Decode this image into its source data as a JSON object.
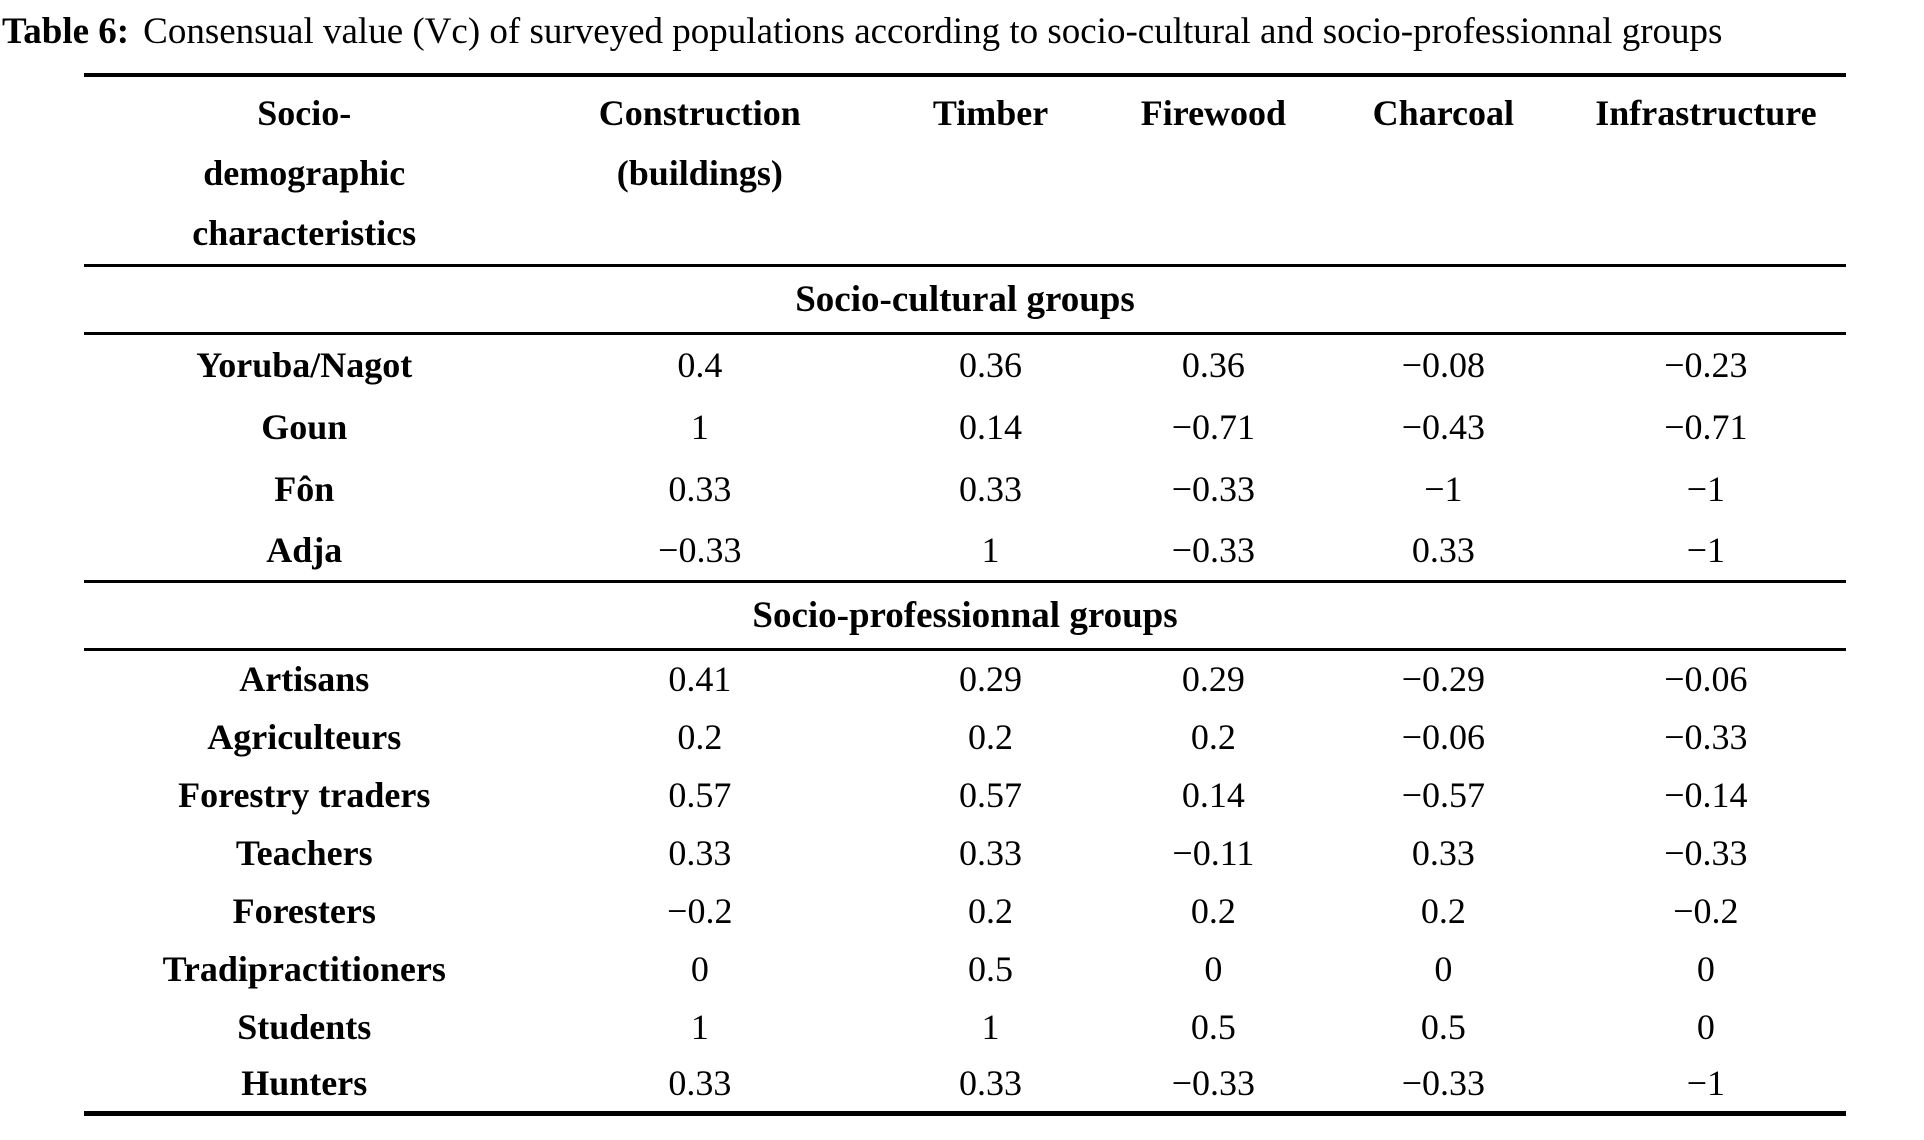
{
  "caption": {
    "label": "Table 6:",
    "text": "Consensual value (Vc) of surveyed populations according to socio-cultural and socio-professionnal groups"
  },
  "table": {
    "headers": [
      "Socio-\ndemographic\ncharacteristics",
      "Construction\n(buildings)",
      "Timber",
      "Firewood",
      "Charcoal",
      "Infrastructure"
    ],
    "sections": [
      {
        "section_label": "Socio-cultural groups",
        "rows": [
          {
            "label": "Yoruba/Nagot",
            "values": [
              "0.4",
              "0.36",
              "0.36",
              "−0.08",
              "−0.23"
            ]
          },
          {
            "label": "Goun",
            "values": [
              "1",
              "0.14",
              "−0.71",
              "−0.43",
              "−0.71"
            ]
          },
          {
            "label": "Fôn",
            "values": [
              "0.33",
              "0.33",
              "−0.33",
              "−1",
              "−1"
            ]
          },
          {
            "label": "Adja",
            "values": [
              "−0.33",
              "1",
              "−0.33",
              "0.33",
              "−1"
            ]
          }
        ]
      },
      {
        "section_label": "Socio-professionnal groups",
        "rows": [
          {
            "label": "Artisans",
            "values": [
              "0.41",
              "0.29",
              "0.29",
              "−0.29",
              "−0.06"
            ]
          },
          {
            "label": "Agriculteurs",
            "values": [
              "0.2",
              "0.2",
              "0.2",
              "−0.06",
              "−0.33"
            ]
          },
          {
            "label": "Forestry traders",
            "values": [
              "0.57",
              "0.57",
              "0.14",
              "−0.57",
              "−0.14"
            ]
          },
          {
            "label": "Teachers",
            "values": [
              "0.33",
              "0.33",
              "−0.11",
              "0.33",
              "−0.33"
            ]
          },
          {
            "label": "Foresters",
            "values": [
              "−0.2",
              "0.2",
              "0.2",
              "0.2",
              "−0.2"
            ]
          },
          {
            "label": "Tradipractitioners",
            "values": [
              "0",
              "0.5",
              "0",
              "0",
              "0"
            ]
          },
          {
            "label": "Students",
            "values": [
              "1",
              "1",
              "0.5",
              "0.5",
              "0"
            ]
          },
          {
            "label": "Hunters",
            "values": [
              "0.33",
              "0.33",
              "−0.33",
              "−0.33",
              "−1"
            ]
          }
        ]
      }
    ],
    "chart_data": {
      "type": "table",
      "title": "Consensual value (Vc) of surveyed populations according to socio-cultural and socio-professionnal groups",
      "columns": [
        "Construction (buildings)",
        "Timber",
        "Firewood",
        "Charcoal",
        "Infrastructure"
      ],
      "groups": {
        "Socio-cultural groups": {
          "Yoruba/Nagot": [
            0.4,
            0.36,
            0.36,
            -0.08,
            -0.23
          ],
          "Goun": [
            1,
            0.14,
            -0.71,
            -0.43,
            -0.71
          ],
          "Fôn": [
            0.33,
            0.33,
            -0.33,
            -1,
            -1
          ],
          "Adja": [
            -0.33,
            1,
            -0.33,
            0.33,
            -1
          ]
        },
        "Socio-professionnal groups": {
          "Artisans": [
            0.41,
            0.29,
            0.29,
            -0.29,
            -0.06
          ],
          "Agriculteurs": [
            0.2,
            0.2,
            0.2,
            -0.06,
            -0.33
          ],
          "Forestry traders": [
            0.57,
            0.57,
            0.14,
            -0.57,
            -0.14
          ],
          "Teachers": [
            0.33,
            0.33,
            -0.11,
            0.33,
            -0.33
          ],
          "Foresters": [
            -0.2,
            0.2,
            0.2,
            0.2,
            -0.2
          ],
          "Tradipractitioners": [
            0,
            0.5,
            0,
            0,
            0
          ],
          "Students": [
            1,
            1,
            0.5,
            0.5,
            0
          ],
          "Hunters": [
            0.33,
            0.33,
            -0.33,
            -0.33,
            -1
          ]
        }
      }
    }
  }
}
